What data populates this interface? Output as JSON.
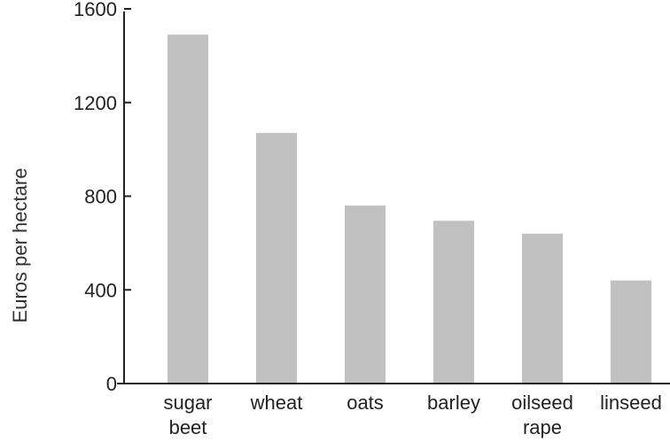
{
  "chart_data": {
    "type": "bar",
    "title": "",
    "xlabel": "",
    "ylabel": "Euros per hectare",
    "ylim": [
      0,
      1600
    ],
    "yticks": [
      0,
      400,
      800,
      1200,
      1600
    ],
    "ytick_labels": [
      "0",
      "400",
      "800",
      "1200",
      "1600"
    ],
    "categories": [
      [
        "sugar",
        "beet"
      ],
      [
        "wheat"
      ],
      [
        "oats"
      ],
      [
        "barley"
      ],
      [
        "oilseed",
        "rape"
      ],
      [
        "linseed"
      ]
    ],
    "values": [
      1490,
      1070,
      760,
      695,
      640,
      440
    ],
    "grid": false,
    "legend": "none",
    "bar_color": "#c0c0c0",
    "axis_color": "#222222"
  }
}
